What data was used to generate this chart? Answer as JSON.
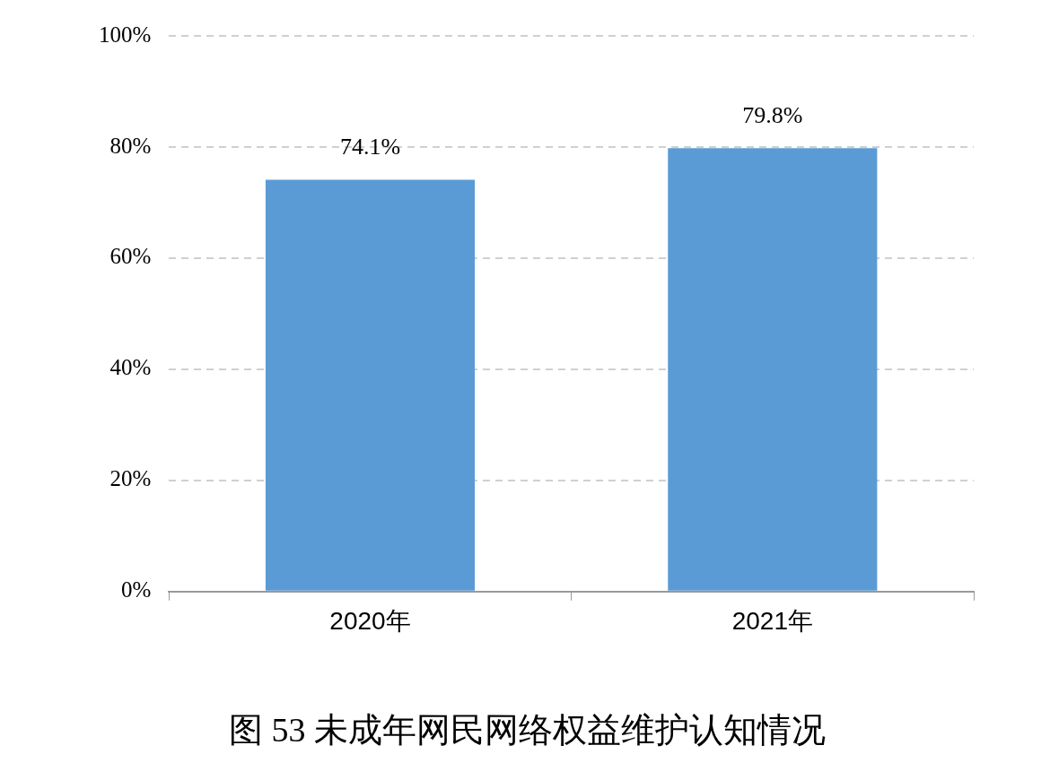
{
  "chart_data": {
    "type": "bar",
    "title": "图 53 未成年网民网络权益维护认知情况",
    "categories": [
      "2020年",
      "2021年"
    ],
    "values": [
      74.1,
      79.8
    ],
    "color": "#5b9bd5",
    "value_labels": [
      "74.1%",
      "79.8%"
    ],
    "ylim": [
      0,
      100
    ],
    "yticks": [
      {
        "value": 0,
        "label": "0%"
      },
      {
        "value": 20,
        "label": "20%"
      },
      {
        "value": 40,
        "label": "40%"
      },
      {
        "value": 60,
        "label": "60%"
      },
      {
        "value": 80,
        "label": "80%"
      },
      {
        "value": 100,
        "label": "100%"
      }
    ],
    "grid": "y",
    "legend": false
  }
}
